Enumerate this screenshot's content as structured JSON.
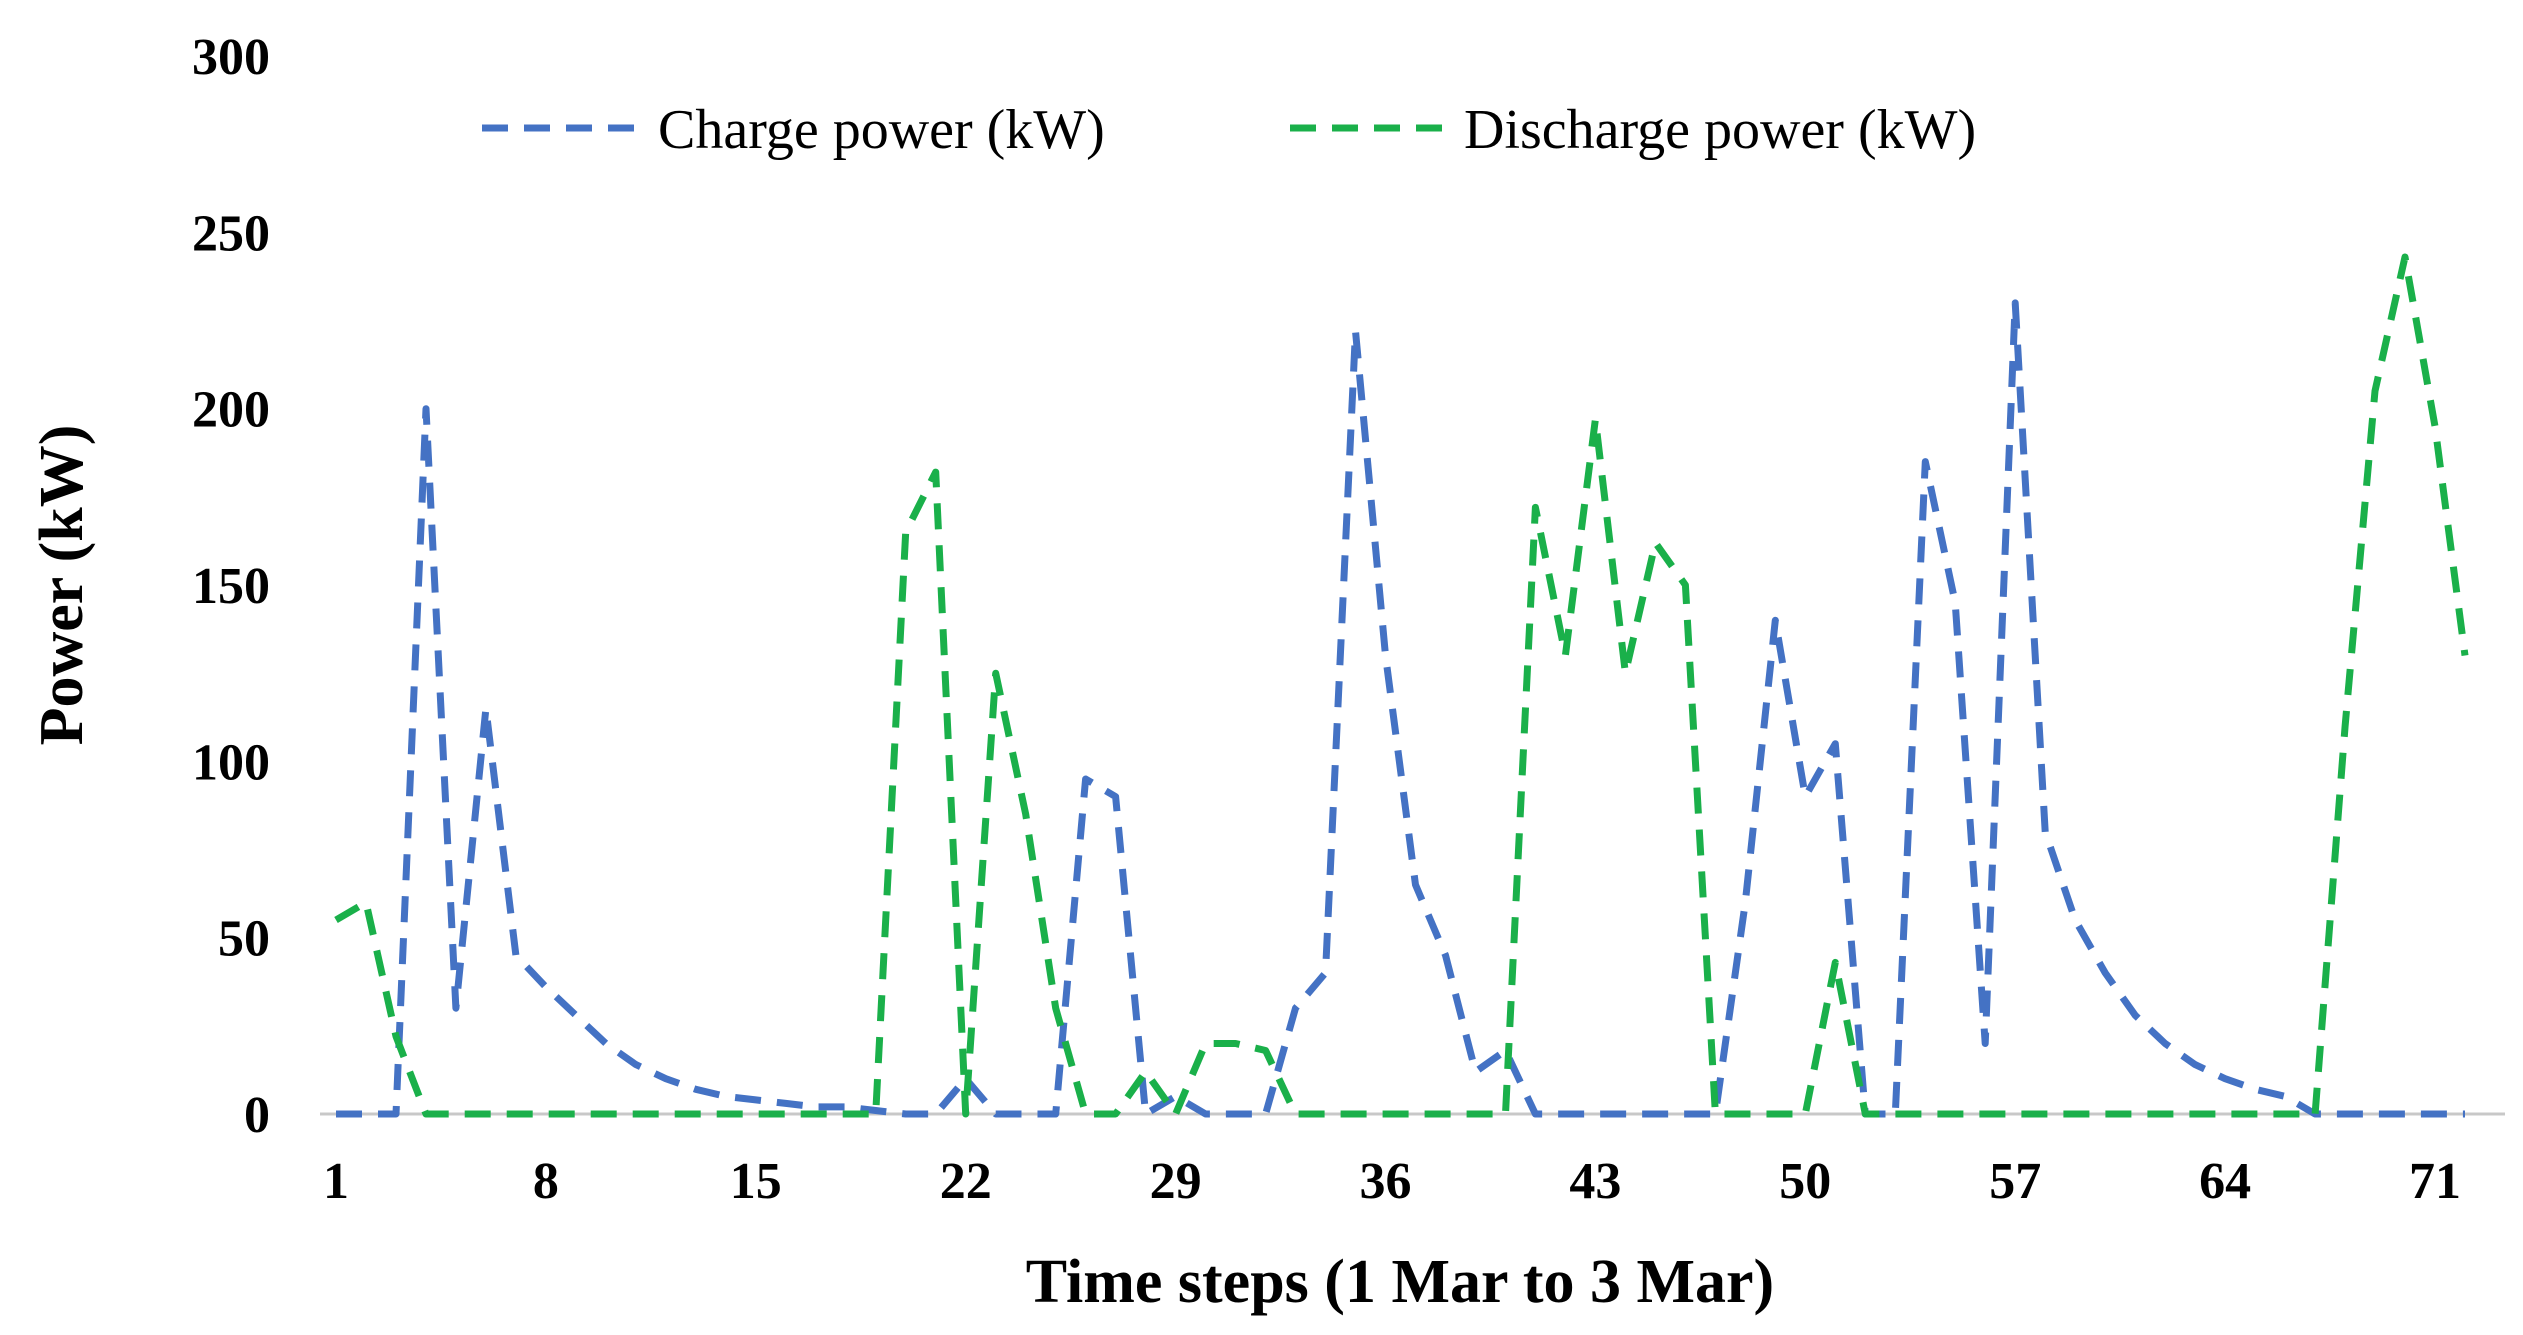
{
  "chart_data": {
    "type": "line",
    "title": "",
    "xlabel": "Time steps (1 Mar to 3 Mar)",
    "ylabel": "Power (kW)",
    "xlim": [
      1,
      72
    ],
    "ylim": [
      0,
      300
    ],
    "x_ticks": [
      1,
      8,
      15,
      22,
      29,
      36,
      43,
      50,
      57,
      64,
      71
    ],
    "y_ticks": [
      0,
      50,
      100,
      150,
      200,
      250,
      300
    ],
    "grid": false,
    "legend": "top-center",
    "line_style": "dashed",
    "x": [
      1,
      2,
      3,
      4,
      5,
      6,
      7,
      8,
      9,
      10,
      11,
      12,
      13,
      14,
      15,
      16,
      17,
      18,
      19,
      20,
      21,
      22,
      23,
      24,
      25,
      26,
      27,
      28,
      29,
      30,
      31,
      32,
      33,
      34,
      35,
      36,
      37,
      38,
      39,
      40,
      41,
      42,
      43,
      44,
      45,
      46,
      47,
      48,
      49,
      50,
      51,
      52,
      53,
      54,
      55,
      56,
      57,
      58,
      59,
      60,
      61,
      62,
      63,
      64,
      65,
      66,
      67,
      68,
      69,
      70,
      71,
      72
    ],
    "series": [
      {
        "name": "Charge power (kW)",
        "color": "#4472c4",
        "values": [
          0,
          0,
          0,
          200,
          30,
          115,
          45,
          36,
          28,
          20,
          14,
          10,
          7,
          5,
          4,
          3,
          2,
          2,
          1,
          0,
          0,
          10,
          0,
          0,
          0,
          95,
          90,
          0,
          5,
          0,
          0,
          0,
          30,
          40,
          222,
          130,
          65,
          45,
          12,
          18,
          0,
          0,
          0,
          0,
          0,
          0,
          0,
          60,
          140,
          90,
          105,
          0,
          0,
          185,
          145,
          20,
          230,
          80,
          55,
          40,
          28,
          20,
          14,
          10,
          7,
          5,
          0,
          0,
          0,
          0,
          0,
          0
        ]
      },
      {
        "name": "Discharge power (kW)",
        "color": "#1ab04a",
        "values": [
          55,
          60,
          22,
          0,
          0,
          0,
          0,
          0,
          0,
          0,
          0,
          0,
          0,
          0,
          0,
          0,
          0,
          0,
          0,
          165,
          182,
          0,
          125,
          85,
          30,
          0,
          0,
          12,
          0,
          20,
          20,
          18,
          0,
          0,
          0,
          0,
          0,
          0,
          0,
          0,
          172,
          130,
          197,
          125,
          162,
          150,
          0,
          0,
          0,
          0,
          43,
          0,
          0,
          0,
          0,
          0,
          0,
          0,
          0,
          0,
          0,
          0,
          0,
          0,
          0,
          0,
          0,
          110,
          205,
          243,
          195,
          130
        ]
      }
    ]
  }
}
